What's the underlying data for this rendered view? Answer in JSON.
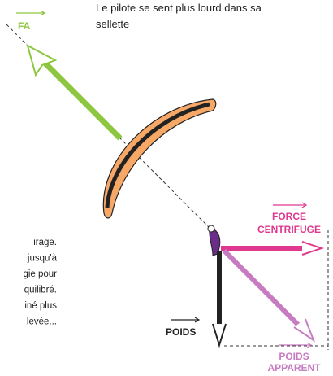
{
  "labels": {
    "fa": "FA",
    "centrifugal": [
      "FORCE",
      "CENTRIFUGE"
    ],
    "weight": "POIDS",
    "apparent": [
      "POIDS",
      "APPARENT"
    ]
  },
  "caption": [
    "Le pilote se sent plus lourd dans sa",
    "sellette"
  ],
  "side_text": [
    "irage.",
    "jusqu'à",
    "gie pour",
    "quilibré.",
    "iné plus",
    "levée..."
  ]
}
